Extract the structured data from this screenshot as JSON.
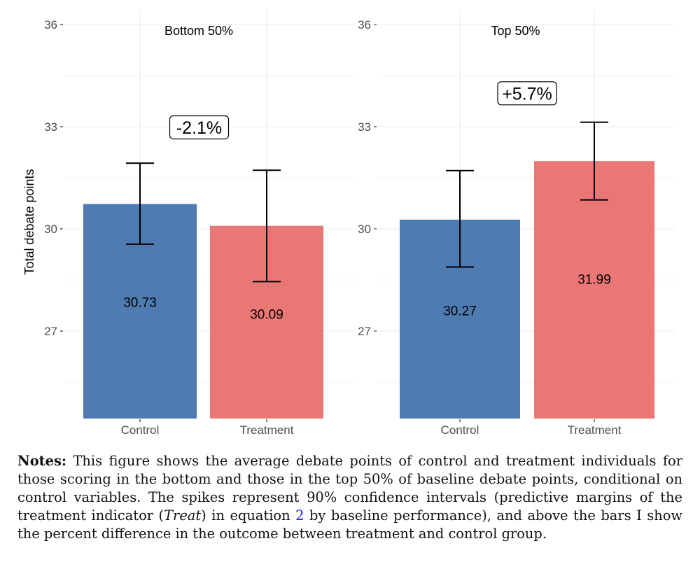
{
  "chart_data": {
    "type": "bar",
    "ylabel": "Total debate points",
    "ylim": [
      24.5,
      36.5
    ],
    "yticks": [
      27,
      30,
      33,
      36
    ],
    "grid": true,
    "colors": {
      "Control": "#4e7bb1",
      "Treatment": "#e87775"
    },
    "panels": [
      {
        "title": "Bottom 50%",
        "categories": [
          "Control",
          "Treatment"
        ],
        "values": [
          30.73,
          30.09
        ],
        "value_labels": [
          "30.73",
          "30.09"
        ],
        "ci_low": [
          29.55,
          28.45
        ],
        "ci_high": [
          31.93,
          31.72
        ],
        "annotation": "-2.1%",
        "annotation_y": 32.98
      },
      {
        "title": "Top 50%",
        "categories": [
          "Control",
          "Treatment"
        ],
        "values": [
          30.27,
          31.99
        ],
        "value_labels": [
          "30.27",
          "31.99"
        ],
        "ci_low": [
          28.88,
          30.85
        ],
        "ci_high": [
          31.71,
          33.13
        ],
        "annotation": "+5.7%",
        "annotation_y": 33.98
      }
    ]
  },
  "notes": {
    "label": "Notes:",
    "text_before_treat": "This figure shows the average debate points of control and treatment individuals for those scoring in the bottom and those in the top 50% of baseline debate points, conditional on control variables. The spikes represent 90% confidence intervals (predictive margins of the treatment indicator (",
    "treat_symbol": "Treat",
    "text_before_ref": ") in equation",
    "equation_ref": "2",
    "text_after_ref": "by baseline performance), and above the bars I show the percent difference in the outcome between treatment and control group."
  }
}
